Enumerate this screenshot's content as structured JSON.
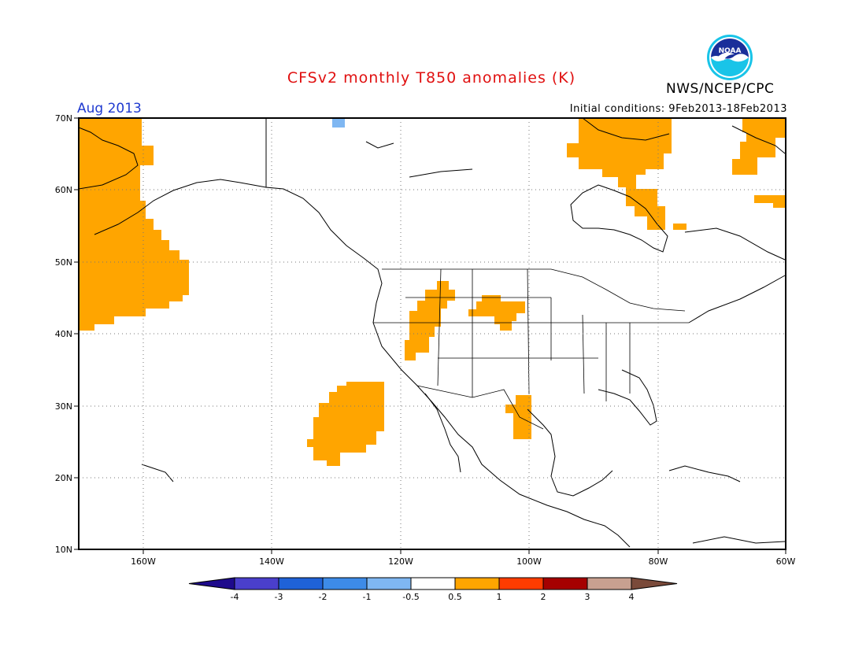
{
  "title": "CFSv2 monthly T850 anomalies (K)",
  "valid_month": "Aug 2013",
  "initial_conditions": "Initial conditions: 9Feb2013-18Feb2013",
  "organization": "NWS/NCEP/CPC",
  "logo_text": "NOAA",
  "map": {
    "lon_range": [
      -170,
      -60
    ],
    "lat_range": [
      10,
      70
    ],
    "lon_ticks": [
      "160W",
      "140W",
      "120W",
      "100W",
      "80W",
      "60W"
    ],
    "lat_ticks": [
      "70N",
      "60N",
      "50N",
      "40N",
      "30N",
      "20N",
      "10N"
    ],
    "grid": "dotted"
  },
  "colorbar": {
    "levels": [
      "-4",
      "-3",
      "-2",
      "-1",
      "-0.5",
      "0.5",
      "1",
      "2",
      "3",
      "4"
    ],
    "colors": [
      "#1e0a8c",
      "#4a3fcc",
      "#1f62d8",
      "#3d8be8",
      "#7fb7f2",
      "#ffffff",
      "#ffa500",
      "#ff3c00",
      "#a50000",
      "#c8a090",
      "#7a4a3a"
    ]
  },
  "anomaly_regions": [
    {
      "name": "north-pacific-warm",
      "value": "0.5-1"
    },
    {
      "name": "subtropical-pacific-warm",
      "value": "0.5-1"
    },
    {
      "name": "great-basin-warm",
      "value": "0.5-1"
    },
    {
      "name": "northern-plains-warm",
      "value": "0.5-1"
    },
    {
      "name": "texas-warm",
      "value": "0.5-1"
    },
    {
      "name": "hudson-bay-warm",
      "value": "0.5-1"
    },
    {
      "name": "labrador-warm",
      "value": "0.5-1"
    },
    {
      "name": "arctic-cold",
      "value": "-1 to -0.5"
    }
  ]
}
